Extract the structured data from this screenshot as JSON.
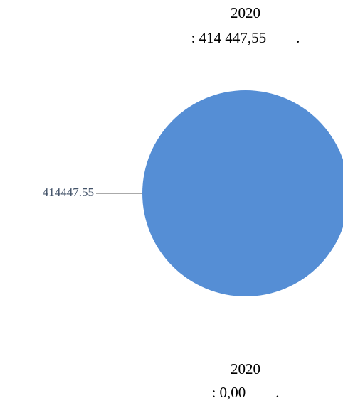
{
  "chart_data": {
    "type": "pie",
    "title": [
      "2020",
      ": 414 447,55        ."
    ],
    "categories": [
      null
    ],
    "values": [
      414447.55
    ],
    "color": "#558ed5",
    "annotation": [
      "2020",
      ": 0,00        ."
    ]
  }
}
